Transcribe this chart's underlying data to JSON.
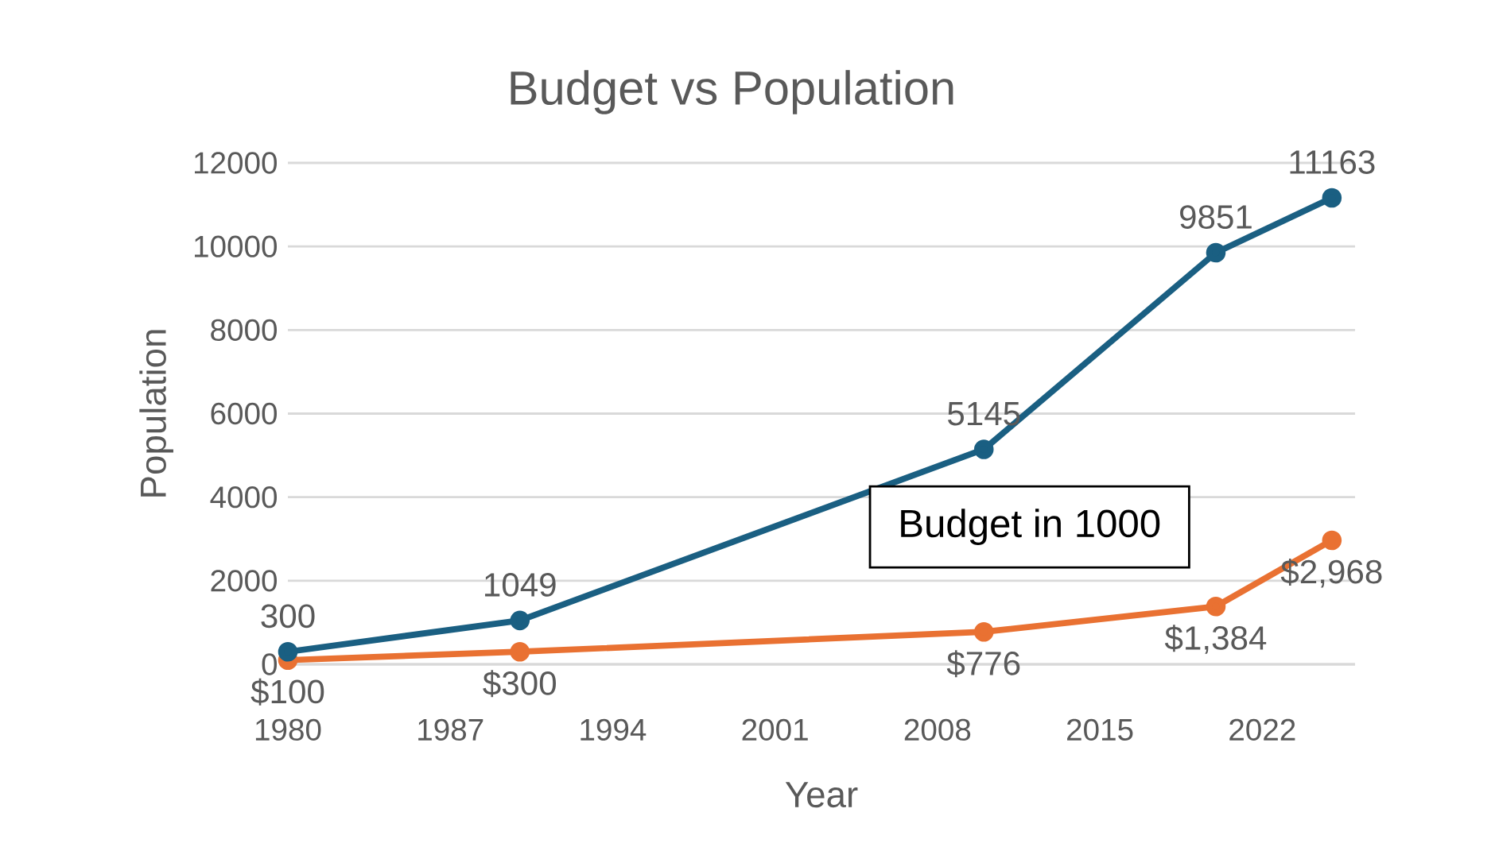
{
  "chart_data": {
    "type": "line",
    "title": "Budget vs Population",
    "xlabel": "Year",
    "ylabel": "Population",
    "x": [
      1980,
      1990,
      2010,
      2020,
      2025
    ],
    "series": [
      {
        "color": "#1a5f82",
        "values": [
          300,
          1049,
          5145,
          9851,
          11163
        ],
        "value_labels": [
          "300",
          "1049",
          "5145",
          "9851",
          "11163"
        ]
      },
      {
        "color": "#e97132",
        "values": [
          100,
          300,
          776,
          1384,
          2968
        ],
        "value_labels": [
          "$100",
          "$300",
          "$776",
          "$1,384",
          "$2,968"
        ]
      }
    ],
    "annotations": [
      "Budget in 1000"
    ],
    "xlim": [
      1980,
      2026
    ],
    "xticks": [
      1980,
      1987,
      1994,
      2001,
      2008,
      2015,
      2022
    ],
    "ylim": [
      0,
      12000
    ],
    "yticks": [
      0,
      2000,
      4000,
      6000,
      8000,
      10000,
      12000
    ],
    "grid": "y",
    "marker": "circle",
    "line_style": "solid"
  }
}
